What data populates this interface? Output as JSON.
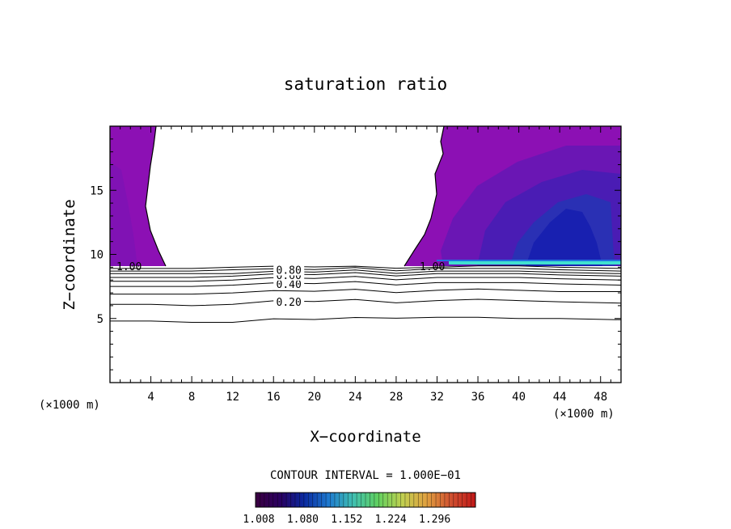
{
  "chart_data": {
    "type": "contour",
    "title": "saturation ratio",
    "xlabel": "X−coordinate",
    "ylabel": "Z−coordinate",
    "x_unit": "(×1000 m)",
    "x_unit_right": "(×1000 m)",
    "xlim": [
      0,
      50
    ],
    "ylim": [
      0,
      20
    ],
    "x_ticks": [
      4,
      8,
      12,
      16,
      20,
      24,
      28,
      32,
      36,
      40,
      44,
      48
    ],
    "y_ticks": [
      5,
      10,
      15
    ],
    "contour_interval_text": "CONTOUR INTERVAL = 1.000E−01",
    "contour_levels": [
      0.1,
      0.2,
      0.3,
      0.4,
      0.5,
      0.6,
      0.7,
      0.8,
      0.9,
      1.0
    ],
    "contour_lines": [
      {
        "label": "",
        "z": [
          4.8,
          4.8,
          4.7,
          4.7,
          4.9,
          5.0,
          5.0,
          5.1,
          5.1,
          5.1,
          5.0,
          5.0,
          4.9
        ]
      },
      {
        "label": "0.20",
        "z": [
          6.1,
          6.1,
          6.0,
          6.1,
          6.3,
          6.4,
          6.4,
          6.3,
          6.4,
          6.5,
          6.4,
          6.3,
          6.2
        ]
      },
      {
        "label": "",
        "z": [
          6.9,
          6.9,
          6.9,
          7.0,
          7.1,
          7.2,
          7.2,
          7.1,
          7.2,
          7.3,
          7.2,
          7.1,
          7.1
        ]
      },
      {
        "label": "0.40",
        "z": [
          7.5,
          7.5,
          7.5,
          7.6,
          7.7,
          7.8,
          7.8,
          7.7,
          7.8,
          7.8,
          7.8,
          7.7,
          7.6
        ]
      },
      {
        "label": "",
        "z": [
          7.9,
          7.9,
          7.9,
          8.0,
          8.1,
          8.2,
          8.2,
          8.1,
          8.2,
          8.2,
          8.2,
          8.1,
          8.0
        ]
      },
      {
        "label": "0.60",
        "z": [
          8.2,
          8.2,
          8.2,
          8.3,
          8.4,
          8.5,
          8.5,
          8.4,
          8.5,
          8.5,
          8.5,
          8.4,
          8.3
        ]
      },
      {
        "label": "",
        "z": [
          8.5,
          8.5,
          8.5,
          8.5,
          8.6,
          8.7,
          8.7,
          8.6,
          8.7,
          8.7,
          8.7,
          8.6,
          8.5
        ]
      },
      {
        "label": "0.80",
        "z": [
          8.7,
          8.7,
          8.7,
          8.8,
          8.8,
          8.9,
          8.9,
          8.8,
          8.9,
          8.9,
          8.9,
          8.8,
          8.7
        ]
      },
      {
        "label": "",
        "z": [
          8.9,
          8.9,
          8.9,
          9.0,
          9.0,
          9.1,
          9.0,
          9.0,
          9.0,
          9.1,
          9.1,
          9.0,
          8.9
        ]
      }
    ],
    "contour_x": [
      0,
      4,
      8,
      12,
      16,
      20,
      24,
      28,
      32,
      36,
      40,
      44,
      50
    ],
    "supersat_region_labels": [
      "1.00",
      "1.00"
    ],
    "colorbar": {
      "min": 1.008,
      "max": 1.368,
      "tick_labels": [
        "1.008",
        "1.080",
        "1.152",
        "1.224",
        "1.296"
      ],
      "colors": [
        "#3a0040",
        "#2a0060",
        "#0a2aa0",
        "#1e7ad0",
        "#40c0b0",
        "#60d060",
        "#c0d050",
        "#e0a040",
        "#d05030",
        "#c01818"
      ]
    },
    "colors": {
      "base_purple": "#8c10b4",
      "mid_purple": "#6a16b4",
      "blue": "#2a30b4",
      "deep_blue": "#1820b0",
      "cyan": "#40e0d0",
      "contour": "#000000"
    }
  }
}
